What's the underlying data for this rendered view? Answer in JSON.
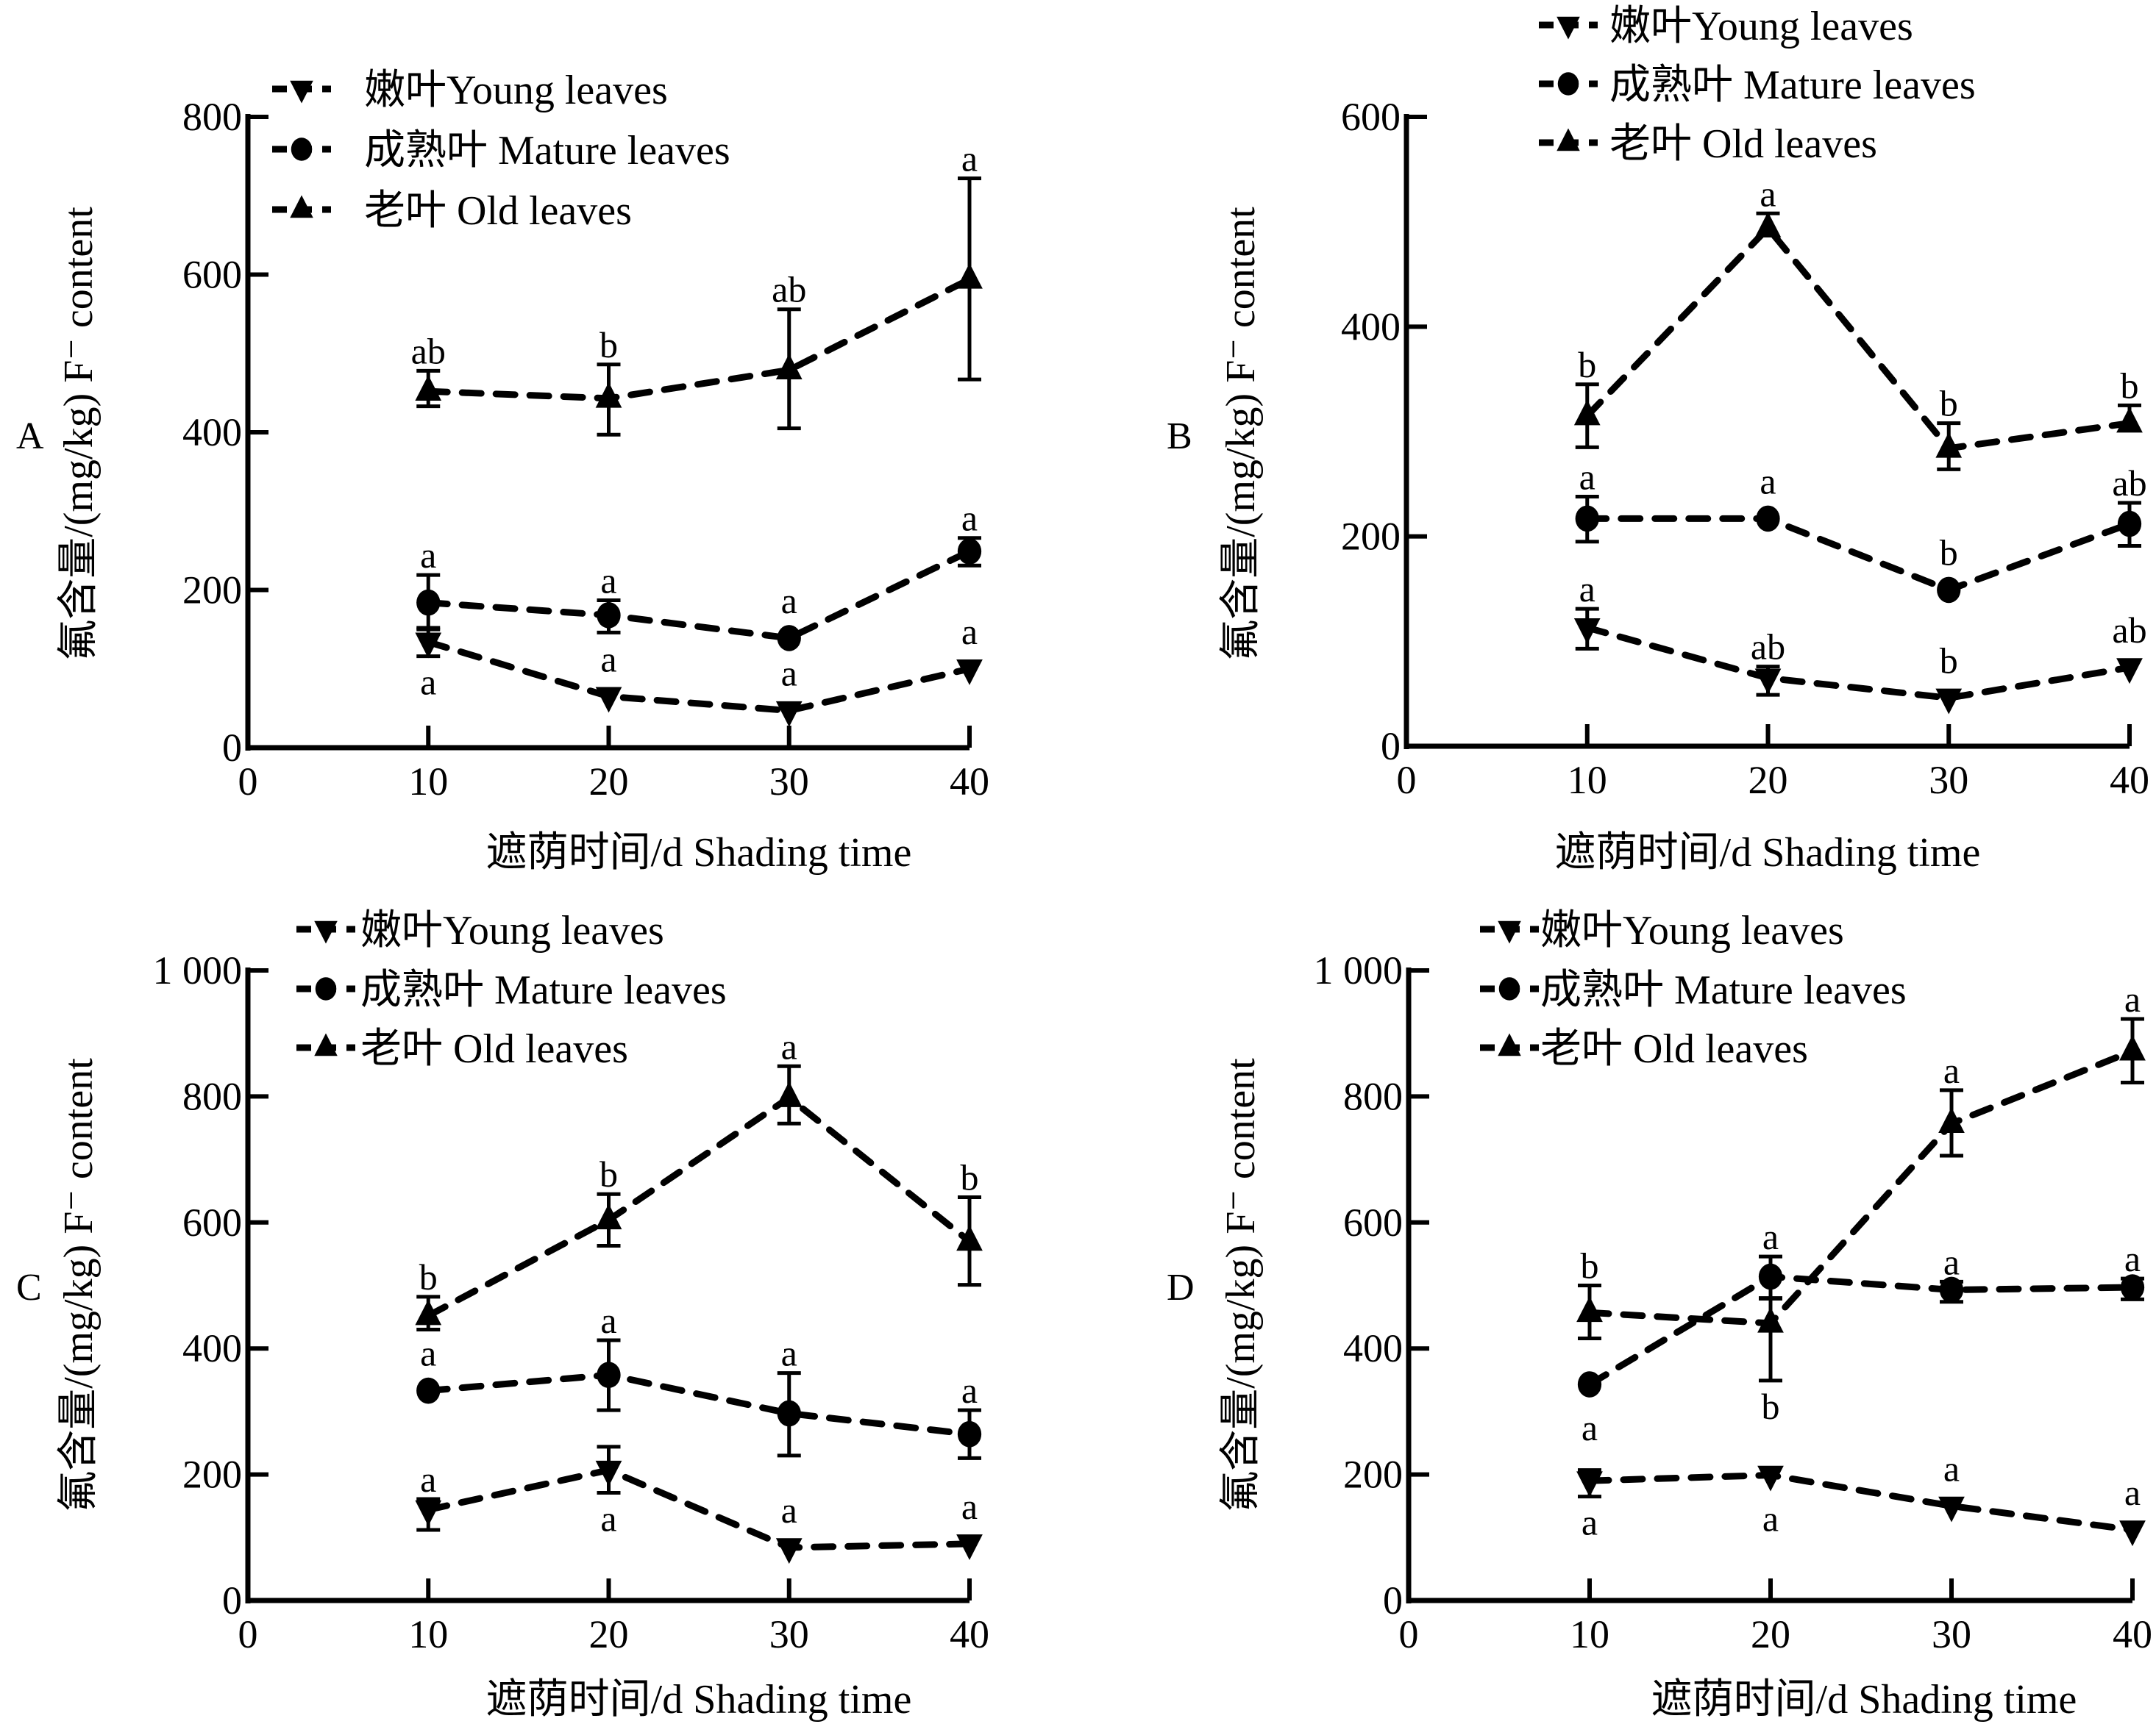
{
  "figure": {
    "description": "Fluoride content in young, mature and old leaves under shading, four panels A–D"
  },
  "chart_data": [
    {
      "panel": "A",
      "type": "line",
      "title": "",
      "xlabel": "遮荫时间/d  Shading time",
      "ylabel": "氟含量/(mg/kg)  F⁻ content",
      "xlim": [
        0,
        40
      ],
      "ylim": [
        0,
        800
      ],
      "x_ticks": [
        "0",
        "10",
        "20",
        "30",
        "40"
      ],
      "y_ticks": [
        "0",
        "200",
        "400",
        "600",
        "800"
      ],
      "y_tick_values": [
        0,
        200,
        400,
        600,
        800
      ],
      "x": [
        10,
        20,
        30,
        40
      ],
      "grid": false,
      "legend_position": "top-left",
      "series": [
        {
          "name": "嫩叶Young leaves",
          "marker": "triangle-down",
          "values": [
            134,
            65,
            47,
            100
          ],
          "err_low": [
            116,
            null,
            null,
            null
          ],
          "err_high": [
            152,
            null,
            null,
            null
          ],
          "sig": [
            "a",
            "a",
            "a",
            "a"
          ],
          "sig_pos": [
            "below",
            "above",
            "above",
            "above"
          ]
        },
        {
          "name": "成熟叶 Mature leaves",
          "marker": "circle",
          "values": [
            184,
            168,
            139,
            249
          ],
          "err_low": [
            150,
            146,
            null,
            231
          ],
          "err_high": [
            219,
            187,
            null,
            266
          ],
          "sig": [
            "a",
            "a",
            "a",
            "a"
          ],
          "sig_pos": [
            "above",
            "above",
            "above",
            "above"
          ]
        },
        {
          "name": "老叶 Old leaves",
          "marker": "triangle-up",
          "values": [
            452,
            443,
            479,
            594
          ],
          "err_low": [
            433,
            397,
            405,
            467
          ],
          "err_high": [
            478,
            486,
            556,
            722
          ],
          "sig": [
            "ab",
            "b",
            "ab",
            "a"
          ],
          "sig_pos": [
            "above",
            "above",
            "above",
            "above"
          ]
        }
      ]
    },
    {
      "panel": "B",
      "type": "line",
      "title": "",
      "xlabel": "遮荫时间/d  Shading time",
      "ylabel": "氟含量/(mg/kg)  F⁻ content",
      "xlim": [
        0,
        40
      ],
      "ylim": [
        0,
        600
      ],
      "x_ticks": [
        "0",
        "10",
        "20",
        "30",
        "40"
      ],
      "y_ticks": [
        "0",
        "200",
        "400",
        "600"
      ],
      "y_tick_values": [
        0,
        200,
        400,
        600
      ],
      "x": [
        10,
        20,
        30,
        40
      ],
      "grid": false,
      "legend_position": "top-left",
      "series": [
        {
          "name": "嫩叶Young leaves",
          "marker": "triangle-down",
          "values": [
            113,
            65,
            46,
            75
          ],
          "err_low": [
            93,
            49,
            null,
            null
          ],
          "err_high": [
            131,
            76,
            null,
            null
          ],
          "sig": [
            "a",
            "ab",
            "b",
            "ab"
          ],
          "sig_pos": [
            "above",
            "above",
            "above",
            "above"
          ]
        },
        {
          "name": "成熟叶 Mature leaves",
          "marker": "circle",
          "values": [
            217,
            217,
            149,
            212
          ],
          "err_low": [
            195,
            null,
            null,
            191
          ],
          "err_high": [
            238,
            null,
            null,
            232
          ],
          "sig": [
            "a",
            "a",
            "b",
            "ab"
          ],
          "sig_pos": [
            "above",
            "above",
            "above",
            "above"
          ]
        },
        {
          "name": "老叶 Old leaves",
          "marker": "triangle-up",
          "values": [
            315,
            494,
            284,
            308
          ],
          "err_low": [
            285,
            null,
            264,
            null
          ],
          "err_high": [
            345,
            508,
            308,
            325
          ],
          "sig": [
            "b",
            "a",
            "b",
            "b"
          ],
          "sig_pos": [
            "above",
            "above",
            "above",
            "above"
          ]
        }
      ]
    },
    {
      "panel": "C",
      "type": "line",
      "title": "",
      "xlabel": "遮荫时间/d  Shading time",
      "ylabel": "氟含量/(mg/kg)  F⁻ content",
      "xlim": [
        0,
        40
      ],
      "ylim": [
        0,
        1000
      ],
      "x_ticks": [
        "0",
        "10",
        "20",
        "30",
        "40"
      ],
      "y_ticks": [
        "0",
        "200",
        "400",
        "600",
        "800",
        "1 000"
      ],
      "y_tick_values": [
        0,
        200,
        400,
        600,
        800,
        1000
      ],
      "x": [
        10,
        20,
        30,
        40
      ],
      "grid": false,
      "legend_position": "top-left",
      "series": [
        {
          "name": "嫩叶Young leaves",
          "marker": "triangle-down",
          "values": [
            144,
            207,
            84,
            90
          ],
          "err_low": [
            112,
            171,
            null,
            null
          ],
          "err_high": [
            161,
            244,
            null,
            null
          ],
          "sig": [
            "a",
            "a",
            "a",
            "a"
          ],
          "sig_pos": [
            "above",
            "below",
            "above",
            "above"
          ]
        },
        {
          "name": "成熟叶 Mature leaves",
          "marker": "circle",
          "values": [
            333,
            358,
            297,
            264
          ],
          "err_low": [
            null,
            302,
            230,
            226
          ],
          "err_high": [
            null,
            413,
            361,
            302
          ],
          "sig": [
            "a",
            "a",
            "a",
            "a"
          ],
          "sig_pos": [
            "above",
            "above",
            "above",
            "above"
          ]
        },
        {
          "name": "老叶 Old leaves",
          "marker": "triangle-up",
          "values": [
            452,
            604,
            798,
            570
          ],
          "err_low": [
            430,
            563,
            757,
            501
          ],
          "err_high": [
            482,
            645,
            848,
            640
          ],
          "sig": [
            "b",
            "b",
            "a",
            "b"
          ],
          "sig_pos": [
            "above",
            "above",
            "above",
            "above"
          ]
        }
      ]
    },
    {
      "panel": "D",
      "type": "line",
      "title": "",
      "xlabel": "遮荫时间/d  Shading time",
      "ylabel": "氟含量/(mg/kg)  F⁻ content",
      "xlim": [
        0,
        40
      ],
      "ylim": [
        0,
        1000
      ],
      "x_ticks": [
        "0",
        "10",
        "20",
        "30",
        "40"
      ],
      "y_ticks": [
        "0",
        "200",
        "400",
        "600",
        "800",
        "1 000"
      ],
      "y_tick_values": [
        0,
        200,
        400,
        600,
        800,
        1000
      ],
      "x": [
        10,
        20,
        30,
        40
      ],
      "grid": false,
      "legend_position": "top-left",
      "series": [
        {
          "name": "嫩叶Young leaves",
          "marker": "triangle-down",
          "values": [
            190,
            199,
            150,
            112
          ],
          "err_low": [
            165,
            null,
            null,
            null
          ],
          "err_high": [
            207,
            null,
            null,
            null
          ],
          "sig": [
            "a",
            "a",
            "a",
            "a"
          ],
          "sig_pos": [
            "below",
            "below",
            "above",
            "above"
          ]
        },
        {
          "name": "成熟叶 Mature leaves",
          "marker": "circle",
          "values": [
            343,
            514,
            493,
            497
          ],
          "err_low": [
            null,
            480,
            474,
            478
          ],
          "err_high": [
            null,
            546,
            506,
            511
          ],
          "sig": [
            "a",
            "a",
            "a",
            "a"
          ],
          "sig_pos": [
            "below",
            "above",
            "above",
            "above"
          ]
        },
        {
          "name": "老叶 Old leaves",
          "marker": "triangle-up",
          "values": [
            457,
            440,
            757,
            872
          ],
          "err_low": [
            416,
            349,
            706,
            822
          ],
          "err_high": [
            500,
            479,
            810,
            923
          ],
          "sig": [
            "b",
            "b",
            "a",
            "a"
          ],
          "sig_pos": [
            "above",
            "below",
            "above",
            "above"
          ]
        }
      ]
    }
  ]
}
